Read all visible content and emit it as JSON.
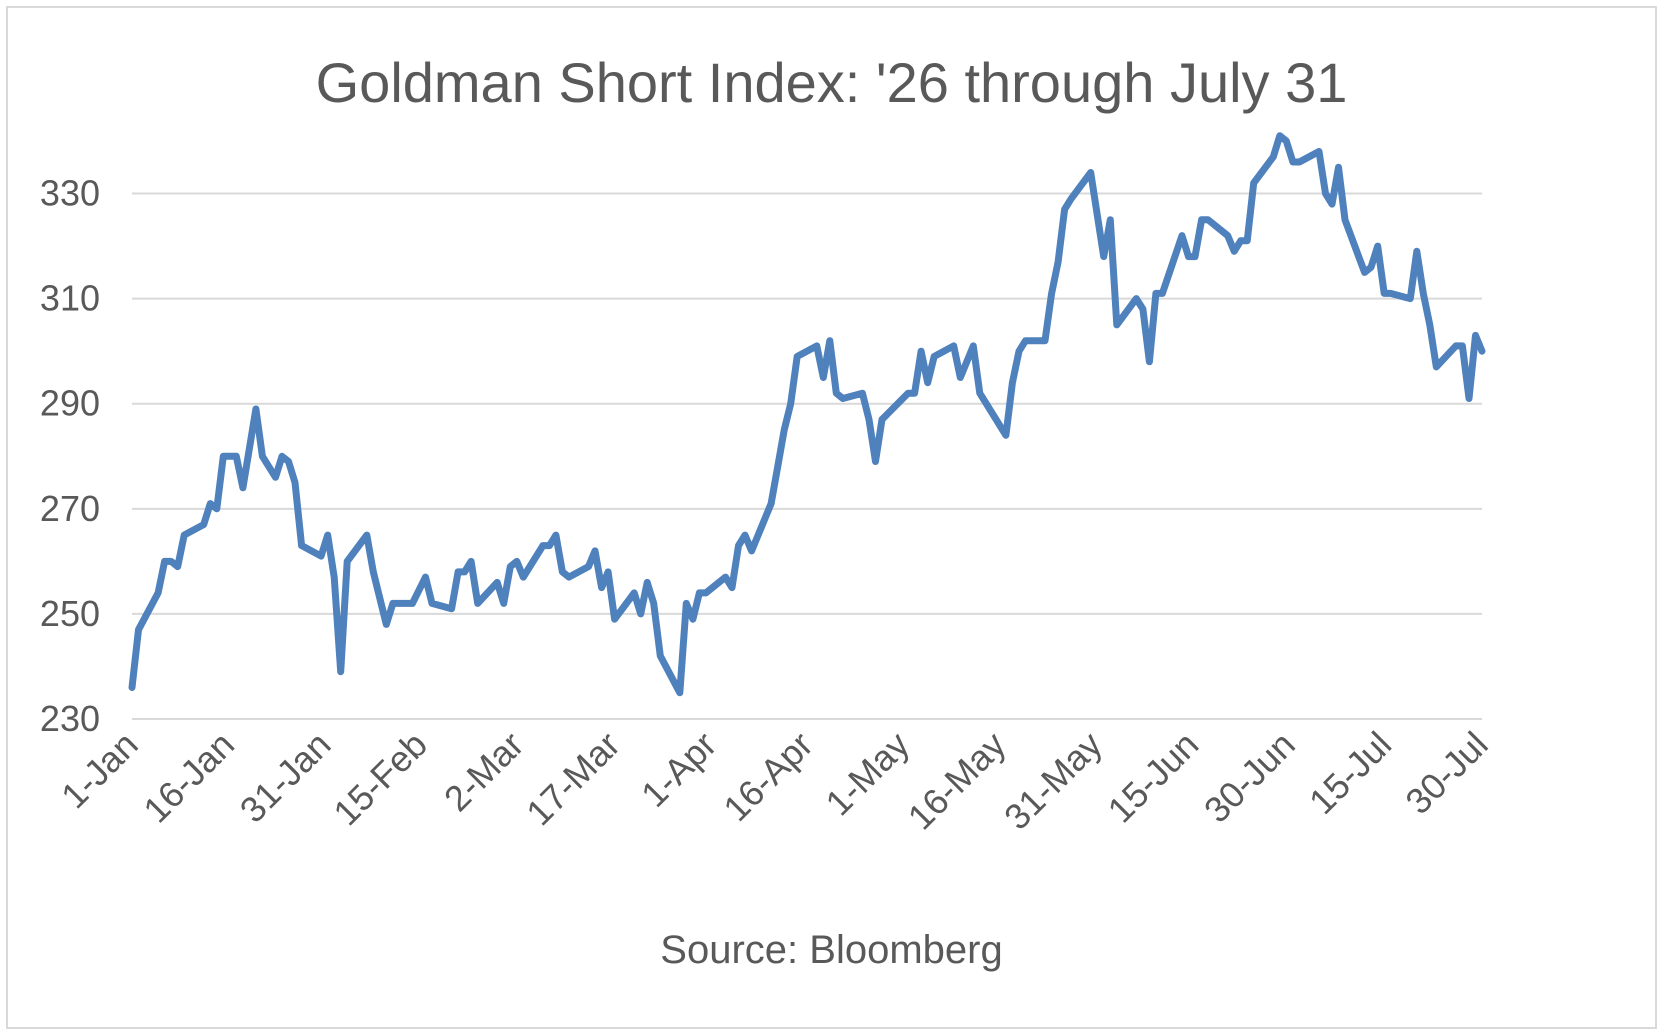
{
  "chart_data": {
    "type": "line",
    "title": "Goldman Short Index: '26 through July 31",
    "source": "Source: Bloomberg",
    "xlabel": "",
    "ylabel": "",
    "ylim": [
      230,
      340
    ],
    "yticks": [
      230,
      250,
      270,
      290,
      310,
      330
    ],
    "xticks": [
      "1-Jan",
      "16-Jan",
      "31-Jan",
      "15-Feb",
      "2-Mar",
      "17-Mar",
      "1-Apr",
      "16-Apr",
      "1-May",
      "16-May",
      "31-May",
      "15-Jun",
      "30-Jun",
      "15-Jul",
      "30-Jul"
    ],
    "grid": true,
    "legend": "none",
    "line_color": "#4f81bd",
    "series": [
      {
        "values": [
          [
            1,
            236
          ],
          [
            2,
            247
          ],
          [
            5,
            254
          ],
          [
            6,
            260
          ],
          [
            7,
            260
          ],
          [
            8,
            259
          ],
          [
            9,
            265
          ],
          [
            12,
            267
          ],
          [
            13,
            271
          ],
          [
            14,
            270
          ],
          [
            15,
            280
          ],
          [
            16,
            280
          ],
          [
            17,
            280
          ],
          [
            18,
            274
          ],
          [
            20,
            289
          ],
          [
            21,
            280
          ],
          [
            23,
            276
          ],
          [
            24,
            280
          ],
          [
            25,
            279
          ],
          [
            26,
            275
          ],
          [
            27,
            263
          ],
          [
            30,
            261
          ],
          [
            31,
            265
          ],
          [
            32,
            257
          ],
          [
            33,
            239
          ],
          [
            34,
            260
          ],
          [
            37,
            265
          ],
          [
            38,
            258
          ],
          [
            40,
            248
          ],
          [
            41,
            252
          ],
          [
            44,
            252
          ],
          [
            46,
            257
          ],
          [
            47,
            252
          ],
          [
            50,
            251
          ],
          [
            51,
            258
          ],
          [
            52,
            258
          ],
          [
            53,
            260
          ],
          [
            54,
            252
          ],
          [
            57,
            256
          ],
          [
            58,
            252
          ],
          [
            59,
            259
          ],
          [
            60,
            260
          ],
          [
            61,
            257
          ],
          [
            64,
            263
          ],
          [
            65,
            263
          ],
          [
            66,
            265
          ],
          [
            67,
            258
          ],
          [
            68,
            257
          ],
          [
            71,
            259
          ],
          [
            72,
            262
          ],
          [
            73,
            255
          ],
          [
            74,
            258
          ],
          [
            75,
            249
          ],
          [
            78,
            254
          ],
          [
            79,
            250
          ],
          [
            80,
            256
          ],
          [
            81,
            252
          ],
          [
            82,
            242
          ],
          [
            85,
            235
          ],
          [
            86,
            252
          ],
          [
            87,
            249
          ],
          [
            88,
            254
          ],
          [
            89,
            254
          ],
          [
            92,
            257
          ],
          [
            93,
            255
          ],
          [
            94,
            263
          ],
          [
            95,
            265
          ],
          [
            96,
            262
          ],
          [
            99,
            271
          ],
          [
            100,
            278
          ],
          [
            101,
            285
          ],
          [
            102,
            290
          ],
          [
            103,
            299
          ],
          [
            106,
            301
          ],
          [
            107,
            295
          ],
          [
            108,
            302
          ],
          [
            109,
            292
          ],
          [
            110,
            291
          ],
          [
            113,
            292
          ],
          [
            114,
            287
          ],
          [
            115,
            279
          ],
          [
            116,
            287
          ],
          [
            120,
            292
          ],
          [
            121,
            292
          ],
          [
            122,
            300
          ],
          [
            123,
            294
          ],
          [
            124,
            299
          ],
          [
            127,
            301
          ],
          [
            128,
            295
          ],
          [
            130,
            301
          ],
          [
            131,
            292
          ],
          [
            135,
            284
          ],
          [
            136,
            294
          ],
          [
            137,
            300
          ],
          [
            138,
            302
          ],
          [
            141,
            302
          ],
          [
            142,
            311
          ],
          [
            143,
            317
          ],
          [
            144,
            327
          ],
          [
            145,
            329
          ],
          [
            148,
            334
          ],
          [
            150,
            318
          ],
          [
            151,
            325
          ],
          [
            152,
            305
          ],
          [
            155,
            310
          ],
          [
            156,
            308
          ],
          [
            157,
            298
          ],
          [
            158,
            311
          ],
          [
            159,
            311
          ],
          [
            162,
            322
          ],
          [
            163,
            318
          ],
          [
            164,
            318
          ],
          [
            165,
            325
          ],
          [
            166,
            325
          ],
          [
            169,
            322
          ],
          [
            170,
            319
          ],
          [
            171,
            321
          ],
          [
            172,
            321
          ],
          [
            173,
            332
          ],
          [
            176,
            337
          ],
          [
            177,
            341
          ],
          [
            178,
            340
          ],
          [
            179,
            336
          ],
          [
            180,
            336
          ],
          [
            183,
            338
          ],
          [
            184,
            330
          ],
          [
            185,
            328
          ],
          [
            186,
            335
          ],
          [
            187,
            325
          ],
          [
            190,
            315
          ],
          [
            191,
            316
          ],
          [
            192,
            320
          ],
          [
            193,
            311
          ],
          [
            194,
            311
          ],
          [
            197,
            310
          ],
          [
            198,
            319
          ],
          [
            199,
            311
          ],
          [
            200,
            305
          ],
          [
            201,
            297
          ],
          [
            204,
            301
          ],
          [
            205,
            301
          ],
          [
            206,
            291
          ],
          [
            207,
            303
          ],
          [
            208,
            300
          ]
        ]
      }
    ]
  }
}
